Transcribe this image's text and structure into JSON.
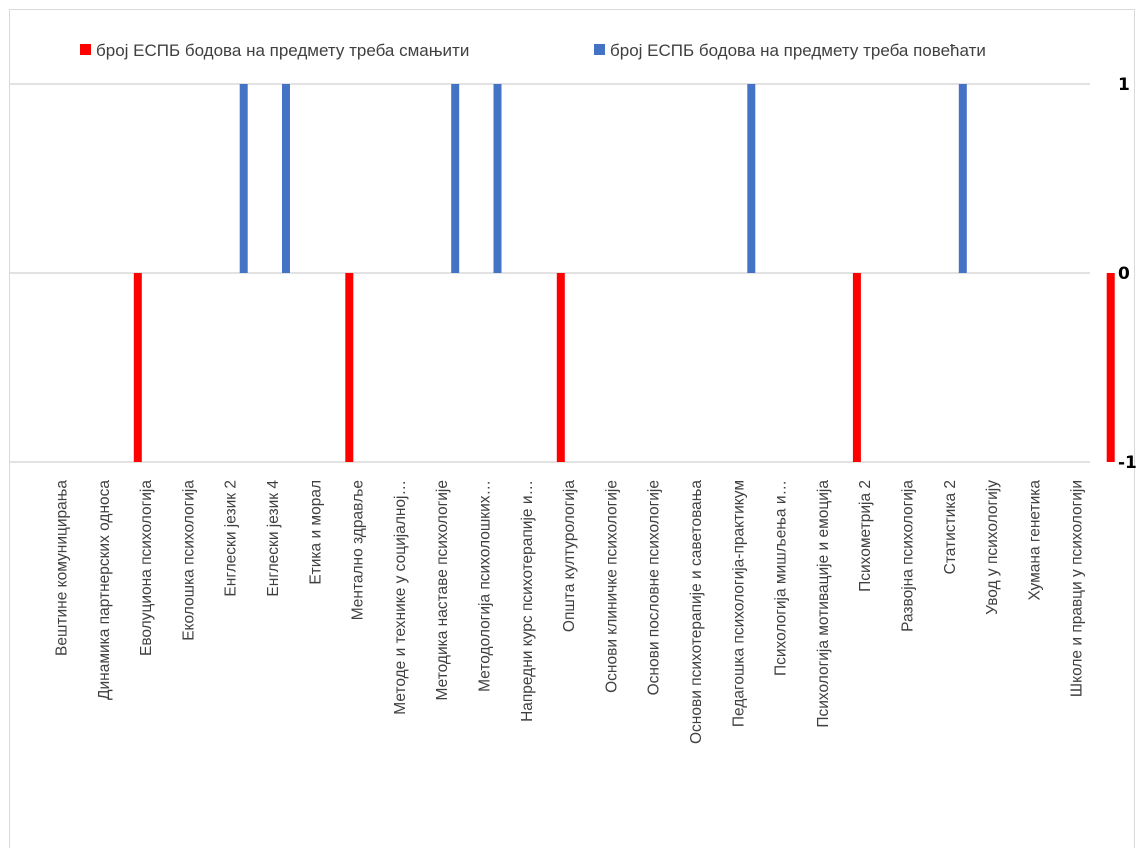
{
  "chart_data": {
    "type": "bar",
    "title": "",
    "xlabel": "",
    "ylabel": "",
    "ylim": [
      -1,
      1
    ],
    "yticks": [
      "1",
      "0",
      "-1"
    ],
    "grid": true,
    "legend_position": "top",
    "categories": [
      "Вештине комуницирања",
      "Динамика партнерских односа",
      "Еволуциона психологија",
      "Еколошка психологија",
      "Енглески језик 2",
      "Енглески језик 4",
      "Етика и морал",
      "Ментално здравље",
      "Методе и технике у социјалној…",
      "Методика наставе психологије",
      "Методологија психолошких…",
      "Напредни курс психотерапије и…",
      "Општа културологија",
      "Основи клиничке психологије",
      "Основи пословне психологије",
      "Основи психотерапије и саветовања",
      "Педагошка психологија-практикум",
      "Психологија мишљења и…",
      "Психологија мотивације и емоција",
      "Психометрија 2",
      "Развојна психологија",
      "Статистика 2",
      "Увод у психологију",
      "Хумана генетика",
      "Школе и правци у психологији"
    ],
    "series": [
      {
        "name": "број ЕСПБ бодова на предмету треба смањити",
        "color": "#ff0000",
        "values": [
          0,
          -1,
          0,
          0,
          0,
          0,
          -1,
          0,
          0,
          0,
          0,
          -1,
          0,
          0,
          0,
          0,
          0,
          0,
          -1,
          0,
          0,
          0,
          0,
          0,
          -1
        ]
      },
      {
        "name": "број ЕСПБ бодова на предмету треба повећати",
        "color": "#4472c4",
        "values": [
          0,
          0,
          0,
          0,
          1,
          1,
          0,
          0,
          0,
          1,
          1,
          0,
          0,
          0,
          0,
          0,
          1,
          0,
          0,
          0,
          0,
          1,
          0,
          0,
          0
        ]
      }
    ]
  }
}
